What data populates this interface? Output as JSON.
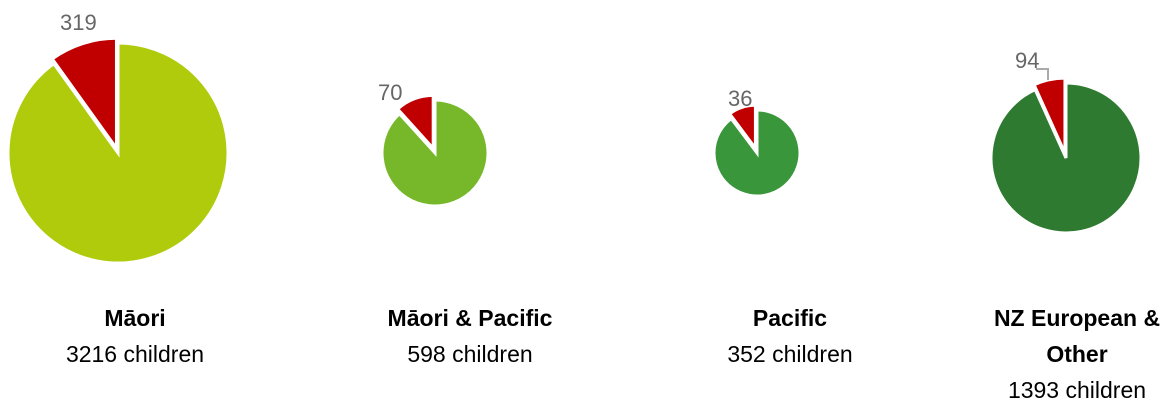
{
  "chart_data": [
    {
      "type": "pie",
      "title": "Māori",
      "subtitle": "3216 children",
      "values": [
        319,
        2897
      ],
      "colors": [
        "#c00000",
        "#b0cb0c"
      ]
    },
    {
      "type": "pie",
      "title": "Māori & Pacific",
      "subtitle": "598 children",
      "values": [
        70,
        528
      ],
      "colors": [
        "#c00000",
        "#76b82a"
      ]
    },
    {
      "type": "pie",
      "title": "Pacific",
      "subtitle": "352 children",
      "values": [
        36,
        316
      ],
      "colors": [
        "#c00000",
        "#3a963a"
      ]
    },
    {
      "type": "pie",
      "title": "NZ European & Other",
      "subtitle": "1393 children",
      "values": [
        94,
        1299
      ],
      "colors": [
        "#c00000",
        "#2e7a30"
      ]
    }
  ]
}
